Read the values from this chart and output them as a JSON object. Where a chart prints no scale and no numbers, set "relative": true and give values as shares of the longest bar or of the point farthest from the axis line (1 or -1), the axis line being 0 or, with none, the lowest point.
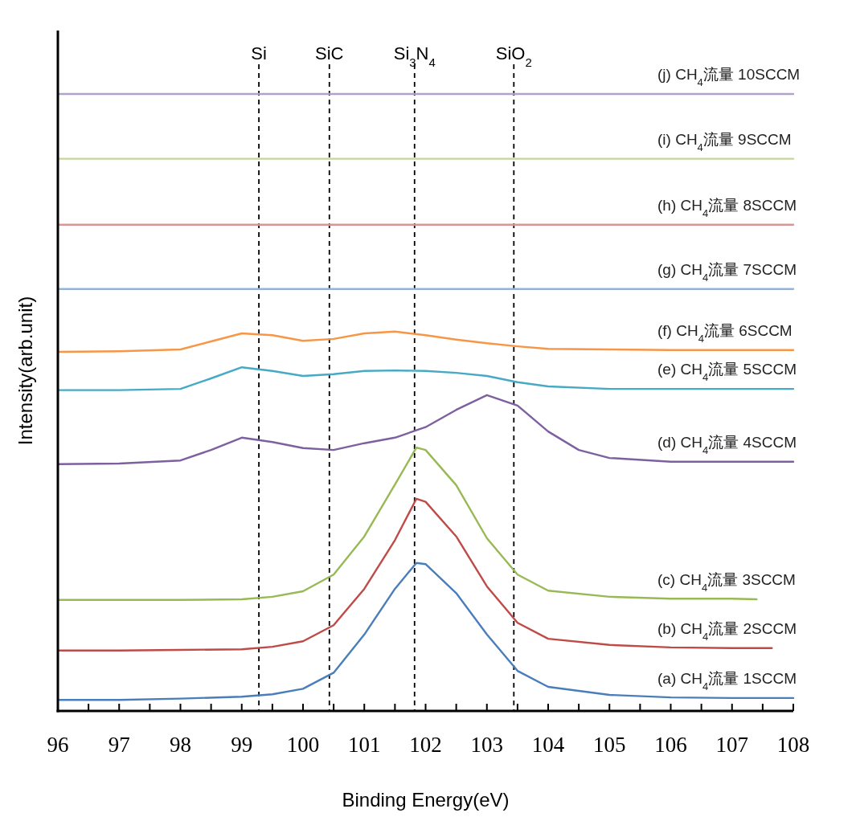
{
  "chart_data": {
    "type": "line",
    "relative": true,
    "tick_labels": "x",
    "xlabel": "Binding Energy(eV)",
    "ylabel": "Intensity(arb.unit)",
    "xlim": [
      96,
      108
    ],
    "xticks": [
      96,
      {
        "value": 96.5,
        "label": null
      },
      97,
      {
        "value": 97.5,
        "label": null
      },
      98,
      {
        "value": 98.5,
        "label": null
      },
      99,
      {
        "value": 99.5,
        "label": null
      },
      100,
      {
        "value": 100.5,
        "label": null
      },
      101,
      {
        "value": 101.5,
        "label": null
      },
      102,
      {
        "value": 102.5,
        "label": null
      },
      103,
      {
        "value": 103.5,
        "label": null
      },
      104,
      {
        "value": 104.5,
        "label": null
      },
      105,
      {
        "value": 105.5,
        "label": null
      },
      106,
      {
        "value": 106.5,
        "label": null
      },
      107,
      {
        "value": 107.5,
        "label": null
      },
      108
    ],
    "series": [
      {
        "name": "(a) CH$_{4}$流量 1SCCM",
        "color": "#4a7ebb",
        "x": [
          96,
          97,
          98,
          99,
          99.5,
          100,
          100.5,
          101,
          101.5,
          101.85,
          102,
          102.5,
          103,
          103.5,
          104,
          105,
          106,
          107,
          108
        ],
        "values": [
          0.018,
          0.018,
          0.02,
          0.023,
          0.027,
          0.036,
          0.062,
          0.124,
          0.198,
          0.24,
          0.238,
          0.191,
          0.124,
          0.065,
          0.039,
          0.026,
          0.022,
          0.021,
          0.021
        ]
      },
      {
        "name": "(b) CH$_{4}$流量 2SCCM",
        "color": "#be4b48",
        "x": [
          96,
          97,
          98,
          99,
          99.5,
          100,
          100.5,
          101,
          101.5,
          101.85,
          102,
          102.5,
          103,
          103.5,
          104,
          105,
          106,
          107,
          107.65
        ],
        "values": [
          0.098,
          0.098,
          0.099,
          0.1,
          0.104,
          0.113,
          0.139,
          0.198,
          0.277,
          0.344,
          0.339,
          0.283,
          0.202,
          0.143,
          0.117,
          0.107,
          0.103,
          0.102,
          0.102
        ]
      },
      {
        "name": "(c) CH$_{4}$流量 3SCCM",
        "color": "#98b954",
        "x": [
          96,
          97,
          98,
          99,
          99.5,
          100,
          100.5,
          101,
          101.5,
          101.85,
          102,
          102.5,
          103,
          103.5,
          104,
          105,
          106,
          107,
          107.4
        ],
        "values": [
          0.18,
          0.18,
          0.18,
          0.181,
          0.185,
          0.194,
          0.221,
          0.283,
          0.367,
          0.427,
          0.423,
          0.366,
          0.28,
          0.221,
          0.195,
          0.185,
          0.182,
          0.182,
          0.181
        ]
      },
      {
        "name": "(d) CH$_{4}$流量 4SCCM",
        "color": "#7d60a0",
        "x": [
          96,
          97,
          98,
          98.5,
          99,
          99.5,
          100,
          100.5,
          101,
          101.5,
          102,
          102.5,
          103,
          103.5,
          104,
          104.5,
          105,
          106,
          107,
          108
        ],
        "values": [
          0.4,
          0.401,
          0.406,
          0.423,
          0.443,
          0.436,
          0.426,
          0.423,
          0.434,
          0.443,
          0.46,
          0.488,
          0.512,
          0.495,
          0.453,
          0.423,
          0.41,
          0.404,
          0.404,
          0.404
        ]
      },
      {
        "name": "(e) CH$_{4}$流量 5SCCM",
        "color": "#46aac5",
        "x": [
          96,
          97,
          98,
          98.5,
          99,
          99.5,
          100,
          100.5,
          101,
          101.5,
          102,
          102.5,
          103,
          103.5,
          104,
          105,
          106,
          107,
          108
        ],
        "values": [
          0.52,
          0.52,
          0.522,
          0.539,
          0.557,
          0.551,
          0.543,
          0.546,
          0.551,
          0.552,
          0.551,
          0.548,
          0.543,
          0.533,
          0.526,
          0.522,
          0.522,
          0.522,
          0.522
        ]
      },
      {
        "name": "(f) CH$_{4}$流量 6SCCM",
        "color": "#f79646",
        "x": [
          96,
          97,
          98,
          98.5,
          99,
          99.5,
          100,
          100.5,
          101,
          101.5,
          102,
          102.5,
          103,
          103.5,
          104,
          105,
          106,
          107,
          108
        ],
        "values": [
          0.582,
          0.583,
          0.586,
          0.599,
          0.612,
          0.609,
          0.6,
          0.603,
          0.612,
          0.615,
          0.609,
          0.602,
          0.596,
          0.591,
          0.587,
          0.586,
          0.585,
          0.585,
          0.585
        ]
      },
      {
        "name": "(g) CH$_{4}$流量 7SCCM",
        "color": "#95b3d7",
        "x": [
          96,
          100,
          104,
          108
        ],
        "values": [
          0.684,
          0.684,
          0.684,
          0.684
        ]
      },
      {
        "name": "(h) CH$_{4}$流量 8SCCM",
        "color": "#d99694",
        "x": [
          96,
          100,
          104,
          108
        ],
        "values": [
          0.788,
          0.788,
          0.788,
          0.788
        ]
      },
      {
        "name": "(i) CH$_{4}$流量 9SCCM",
        "color": "#c3d69b",
        "x": [
          96,
          100,
          104,
          108
        ],
        "values": [
          0.895,
          0.895,
          0.895,
          0.895
        ]
      },
      {
        "name": "(j) CH$_{4}$流量 10SCCM",
        "color": "#b3a2c7",
        "x": [
          96,
          100,
          104,
          108
        ],
        "values": [
          1.0,
          1.0,
          1.0,
          1.0
        ]
      }
    ],
    "ref_lines": [
      {
        "axis": "x",
        "value": 99.28,
        "label": "Si",
        "color": "#000000",
        "line_style": "dashed"
      },
      {
        "axis": "x",
        "value": 100.43,
        "label": "SiC",
        "color": "#000000",
        "line_style": "dashed"
      },
      {
        "axis": "x",
        "value": 101.82,
        "label": "Si$_{3}$N$_{4}$",
        "color": "#000000",
        "line_style": "dashed"
      },
      {
        "axis": "x",
        "value": 103.44,
        "label": "SiO$_{2}$",
        "color": "#000000",
        "line_style": "dashed"
      }
    ]
  }
}
